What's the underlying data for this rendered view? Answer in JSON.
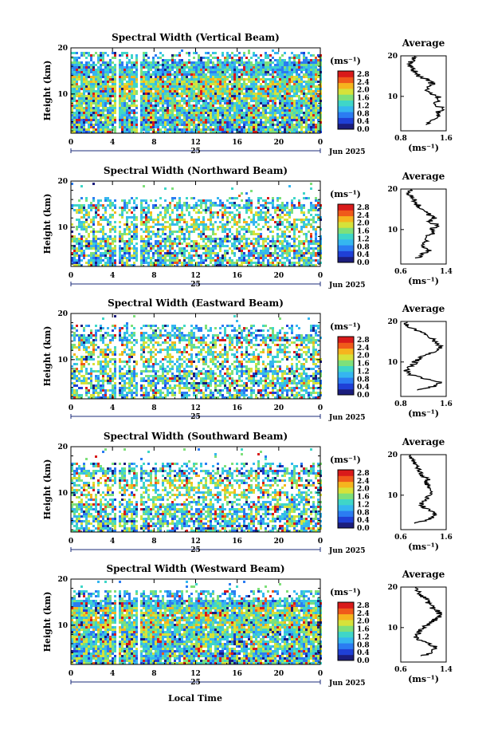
{
  "figure": {
    "xlabel": "Local Time",
    "date_label": "Jun 2025",
    "day_label": "25",
    "colorbar_unit": "(ms⁻¹)",
    "colorbar_ticks": [
      "0.0",
      "0.4",
      "0.8",
      "1.2",
      "1.6",
      "2.0",
      "2.4",
      "2.8"
    ],
    "avg_xlabel": "(ms⁻¹)",
    "colormap": [
      "#1b1d7d",
      "#1f40d6",
      "#2b7cf2",
      "#35b6f0",
      "#3fd6c8",
      "#7ee07a",
      "#d6e23a",
      "#f6b41e",
      "#f05a1a",
      "#d91a1a"
    ],
    "missing_color": "#ffffff",
    "height_ylabel": "Height (km)"
  },
  "chart_data": [
    {
      "type": "heatmap",
      "title": "Spectral Width (Vertical Beam)",
      "xlabel": "",
      "ylabel": "Height (km)",
      "x_ticks": [
        "0",
        "4",
        "8",
        "12",
        "16",
        "20",
        "0"
      ],
      "xlim": [
        0,
        24
      ],
      "y_ticks": [
        "10",
        "20"
      ],
      "ylim": [
        1.5,
        20
      ],
      "color_range": [
        0.0,
        3.0
      ],
      "gaps_hours": [
        [
          4.3,
          4.6
        ],
        [
          6.3,
          6.6
        ]
      ],
      "data_top_km": 19.5,
      "coverage": "dense",
      "average_profile": {
        "title": "Average",
        "x_ticks": [
          "0.8",
          "1.6"
        ],
        "xlim": [
          0.8,
          1.6
        ],
        "height_km": [
          3,
          4,
          5,
          6,
          7,
          8,
          9,
          10,
          11,
          12,
          13,
          14,
          15,
          16,
          17,
          18,
          19,
          20
        ],
        "values": [
          1.2,
          1.35,
          1.5,
          1.45,
          1.55,
          1.4,
          1.5,
          1.45,
          1.3,
          1.25,
          1.35,
          1.3,
          1.1,
          1.05,
          1.0,
          0.95,
          1.0,
          1.05
        ]
      }
    },
    {
      "type": "heatmap",
      "title": "Spectral Width (Northward Beam)",
      "xlabel": "",
      "ylabel": "Height (km)",
      "x_ticks": [
        "0",
        "4",
        "8",
        "12",
        "16",
        "20",
        "0"
      ],
      "xlim": [
        0,
        24
      ],
      "y_ticks": [
        "10",
        "20"
      ],
      "ylim": [
        1.5,
        20
      ],
      "color_range": [
        0.0,
        3.0
      ],
      "gaps_hours": [
        [
          4.3,
          4.6
        ],
        [
          6.3,
          6.6
        ]
      ],
      "data_top_km": 17,
      "coverage": "patchy",
      "average_profile": {
        "title": "Average",
        "x_ticks": [
          "0.6",
          "1.4"
        ],
        "xlim": [
          0.6,
          1.4
        ],
        "height_km": [
          3,
          4,
          5,
          6,
          7,
          8,
          9,
          10,
          11,
          12,
          13,
          14,
          15,
          16,
          17,
          18,
          19,
          20
        ],
        "values": [
          0.9,
          1.0,
          1.1,
          0.95,
          1.05,
          1.0,
          1.2,
          1.15,
          1.25,
          1.1,
          1.2,
          1.05,
          0.95,
          0.9,
          0.85,
          0.8,
          0.75,
          0.8
        ]
      }
    },
    {
      "type": "heatmap",
      "title": "Spectral Width (Eastward Beam)",
      "xlabel": "",
      "ylabel": "Height (km)",
      "x_ticks": [
        "0",
        "4",
        "8",
        "12",
        "16",
        "20",
        "0"
      ],
      "xlim": [
        0,
        24
      ],
      "y_ticks": [
        "10",
        "20"
      ],
      "ylim": [
        1.5,
        20
      ],
      "color_range": [
        0.0,
        3.0
      ],
      "gaps_hours": [
        [
          4.3,
          4.6
        ],
        [
          6.3,
          6.6
        ]
      ],
      "data_top_km": 18,
      "coverage": "patchy",
      "average_profile": {
        "title": "Average",
        "x_ticks": [
          "0.8",
          "1.6"
        ],
        "xlim": [
          0.8,
          1.6
        ],
        "height_km": [
          3,
          4,
          5,
          6,
          7,
          8,
          9,
          10,
          11,
          12,
          13,
          14,
          15,
          16,
          17,
          18,
          19,
          20
        ],
        "values": [
          1.1,
          1.4,
          1.5,
          1.2,
          0.95,
          0.9,
          1.0,
          1.05,
          1.15,
          1.3,
          1.45,
          1.5,
          1.4,
          1.35,
          1.2,
          1.05,
          0.9,
          0.85
        ]
      }
    },
    {
      "type": "heatmap",
      "title": "Spectral Width (Southward Beam)",
      "xlabel": "",
      "ylabel": "Height (km)",
      "x_ticks": [
        "0",
        "4",
        "8",
        "12",
        "16",
        "20",
        "0"
      ],
      "xlim": [
        0,
        24
      ],
      "y_ticks": [
        "10",
        "20"
      ],
      "ylim": [
        1.5,
        20
      ],
      "color_range": [
        0.0,
        3.0
      ],
      "gaps_hours": [
        [
          4.3,
          4.6
        ],
        [
          6.3,
          6.6
        ]
      ],
      "data_top_km": 17,
      "coverage": "patchy",
      "average_profile": {
        "title": "Average",
        "x_ticks": [
          "0.6",
          "1.6"
        ],
        "xlim": [
          0.6,
          1.6
        ],
        "height_km": [
          3,
          4,
          5,
          6,
          7,
          8,
          9,
          10,
          11,
          12,
          13,
          14,
          15,
          16,
          17,
          18,
          19,
          20
        ],
        "values": [
          0.9,
          1.2,
          1.35,
          1.3,
          1.1,
          1.05,
          1.15,
          1.2,
          1.3,
          1.25,
          1.15,
          1.2,
          1.05,
          1.0,
          0.95,
          0.9,
          0.85,
          0.8
        ]
      }
    },
    {
      "type": "heatmap",
      "title": "Spectral Width (Westward Beam)",
      "xlabel": "Local Time",
      "ylabel": "Height (km)",
      "x_ticks": [
        "0",
        "4",
        "8",
        "12",
        "16",
        "20",
        "0"
      ],
      "xlim": [
        0,
        24
      ],
      "y_ticks": [
        "10",
        "20"
      ],
      "ylim": [
        1.5,
        20
      ],
      "color_range": [
        0.0,
        3.0
      ],
      "gaps_hours": [
        [
          4.3,
          4.6
        ],
        [
          6.3,
          6.6
        ]
      ],
      "data_top_km": 18,
      "coverage": "dense",
      "average_profile": {
        "title": "Average",
        "x_ticks": [
          "0.6",
          "1.4"
        ],
        "xlim": [
          0.6,
          1.4
        ],
        "height_km": [
          3,
          4,
          5,
          6,
          7,
          8,
          9,
          10,
          11,
          12,
          13,
          14,
          15,
          16,
          17,
          18,
          19,
          20
        ],
        "values": [
          1.0,
          1.15,
          1.25,
          1.1,
          0.9,
          0.85,
          0.95,
          1.0,
          1.1,
          1.2,
          1.3,
          1.25,
          1.15,
          1.1,
          1.05,
          0.95,
          0.9,
          0.85
        ]
      }
    }
  ]
}
